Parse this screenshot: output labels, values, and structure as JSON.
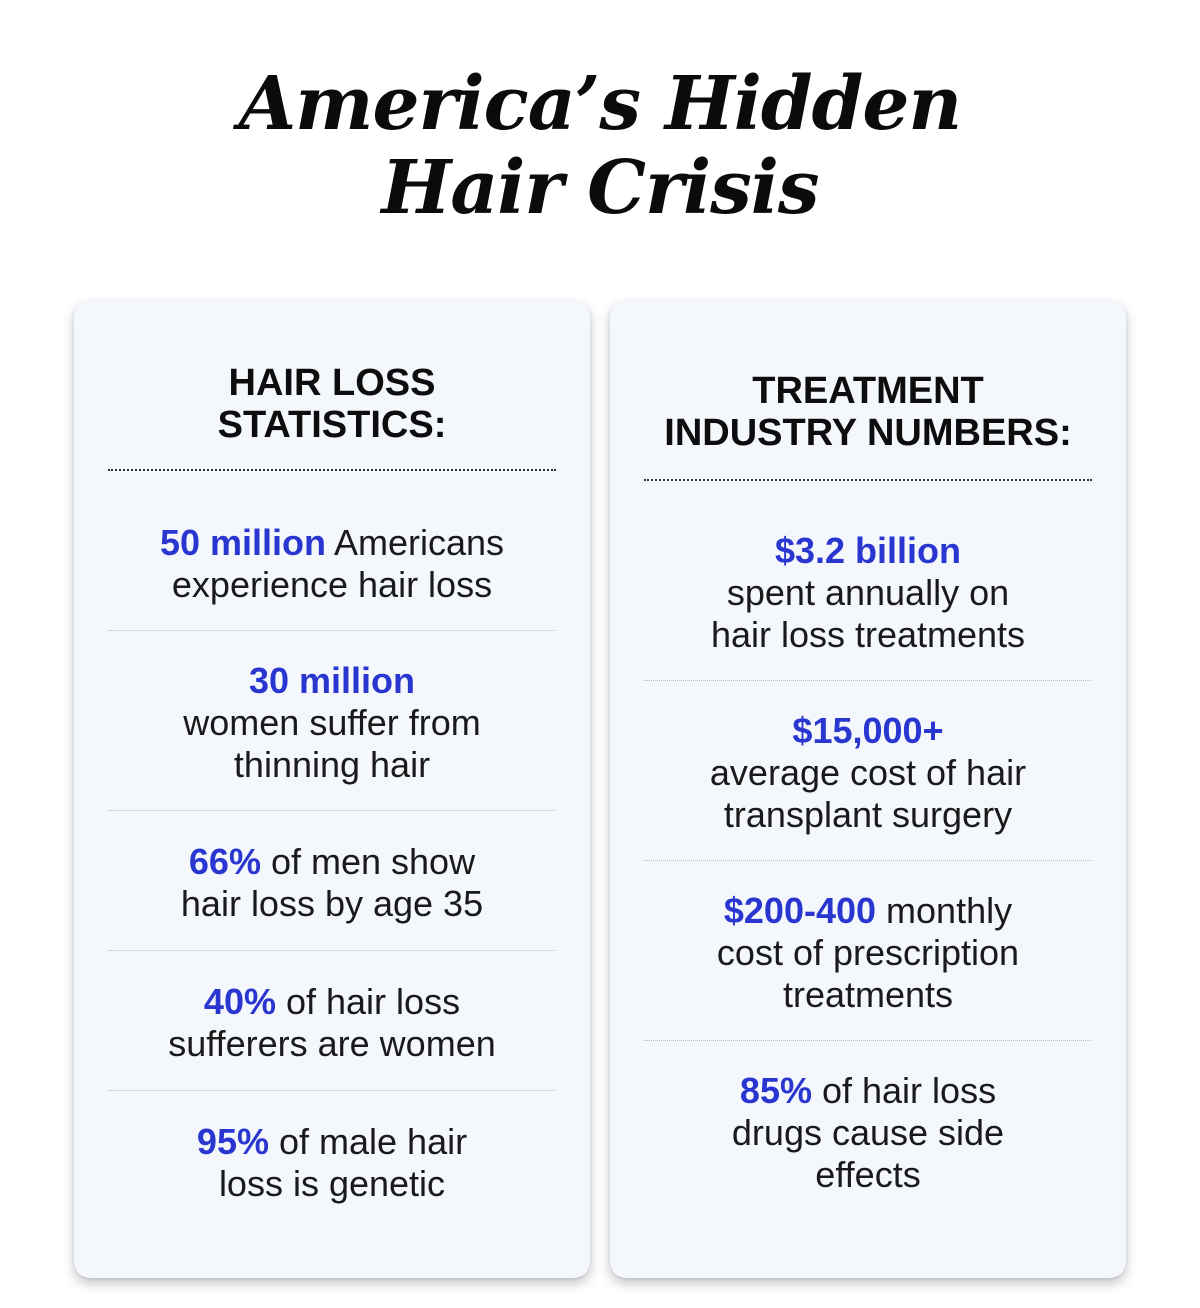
{
  "title": {
    "line1": "America’s Hidden",
    "line2": "Hair Crisis"
  },
  "colors": {
    "highlight": "#2a36d0",
    "card_background": "#f4f7fc",
    "text": "#1a1a1a"
  },
  "left_card": {
    "heading_line1": "HAIR LOSS",
    "heading_line2": "STATISTICS:",
    "items": [
      {
        "highlight": "50 million",
        "text1": " Americans",
        "text2": "experience hair loss",
        "text3": ""
      },
      {
        "highlight": "30 million",
        "text1": "",
        "text2": "women suffer from",
        "text3": "thinning hair"
      },
      {
        "highlight": "66%",
        "text1": " of men show",
        "text2": "hair loss by age 35",
        "text3": ""
      },
      {
        "highlight": "40%",
        "text1": " of hair loss",
        "text2": "sufferers are women",
        "text3": ""
      },
      {
        "highlight": "95%",
        "text1": " of male hair",
        "text2": "loss is genetic",
        "text3": ""
      }
    ]
  },
  "right_card": {
    "heading_line1": "TREATMENT",
    "heading_line2": "INDUSTRY NUMBERS:",
    "items": [
      {
        "highlight": "$3.2 billion",
        "text1": "",
        "text2": "spent annually on",
        "text3": "hair loss treatments"
      },
      {
        "highlight": "$15,000+",
        "text1": "",
        "text2": "average cost of hair",
        "text3": "transplant surgery"
      },
      {
        "highlight": "$200-400",
        "text1": " monthly",
        "text2": "cost of prescription",
        "text3": "treatments"
      },
      {
        "highlight": "85%",
        "text1": " of hair loss",
        "text2": "drugs cause side",
        "text3": "effects"
      }
    ]
  }
}
